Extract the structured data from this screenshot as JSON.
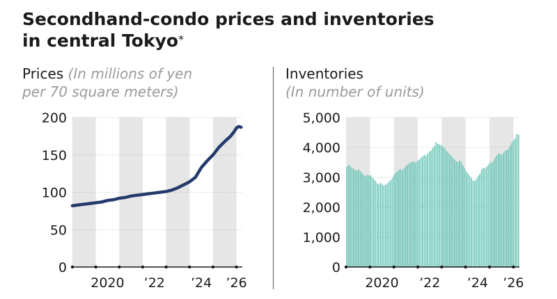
{
  "title": {
    "line1": "Secondhand-condo prices and inventories",
    "line2": "in central Tokyo",
    "footnote_mark": "*"
  },
  "colors": {
    "band": "#e6e6e6",
    "grid": "#bdbdbd",
    "price_line": "#233a6b",
    "inventory_bar": "#6cc7b8",
    "axis": "#1a1a1a"
  },
  "chart_data": [
    {
      "type": "line",
      "title_main": "Prices",
      "title_sub_line1": "(In millions of yen",
      "title_sub_line2": "per 70 square meters)",
      "x_tick_labels": [
        "2020",
        "’22",
        "’24",
        "’26"
      ],
      "x_tick_positions": [
        2020.5,
        2022.5,
        2024.5,
        2026.0
      ],
      "xlim": [
        2019.0,
        2026.25
      ],
      "ylim": [
        0,
        200
      ],
      "y_ticks": [
        0,
        50,
        100,
        150,
        200
      ],
      "y_tick_labels": [
        "0",
        "50",
        "100",
        "150",
        "200"
      ],
      "shaded_years": [
        [
          2019,
          2020
        ],
        [
          2021,
          2022
        ],
        [
          2023,
          2024
        ],
        [
          2025,
          2026
        ]
      ],
      "grid": true,
      "series": [
        {
          "x": [
            2019.0,
            2019.25,
            2019.5,
            2019.75,
            2020.0,
            2020.25,
            2020.5,
            2020.75,
            2021.0,
            2021.25,
            2021.5,
            2021.75,
            2022.0,
            2022.25,
            2022.5,
            2022.75,
            2023.0,
            2023.25,
            2023.5,
            2023.75,
            2024.0,
            2024.25,
            2024.5,
            2024.75,
            2025.0,
            2025.25,
            2025.5,
            2025.75,
            2025.9,
            2026.0,
            2026.1,
            2026.2
          ],
          "y": [
            82,
            83,
            84,
            85,
            86,
            87,
            89,
            90,
            92,
            93,
            95,
            96,
            97,
            98,
            99,
            100,
            101,
            103,
            106,
            110,
            114,
            120,
            133,
            142,
            150,
            160,
            168,
            175,
            181,
            186,
            188,
            187
          ]
        }
      ]
    },
    {
      "type": "bar",
      "title_main": "Inventories",
      "title_sub_line1": "(In number of units)",
      "x_tick_labels": [
        "2020",
        "’22",
        "’24",
        "’26"
      ],
      "x_tick_positions": [
        2020.5,
        2022.5,
        2024.5,
        2026.0
      ],
      "xlim": [
        2019.0,
        2026.25
      ],
      "ylim": [
        0,
        5000
      ],
      "y_ticks": [
        0,
        1000,
        2000,
        3000,
        4000,
        5000
      ],
      "y_tick_labels": [
        "0",
        "1,000",
        "2,000",
        "3,000",
        "4,000",
        "5,000"
      ],
      "shaded_years": [
        [
          2019,
          2020
        ],
        [
          2021,
          2022
        ],
        [
          2023,
          2024
        ],
        [
          2025,
          2026
        ]
      ],
      "grid": true,
      "series": [
        {
          "values": [
            3350,
            3430,
            3380,
            3320,
            3280,
            3250,
            3220,
            3260,
            3200,
            3150,
            3070,
            3040,
            3080,
            3060,
            3070,
            3000,
            2950,
            2880,
            2800,
            2770,
            2820,
            2760,
            2730,
            2750,
            2800,
            2850,
            2900,
            2980,
            3080,
            3150,
            3200,
            3250,
            3280,
            3230,
            3310,
            3380,
            3420,
            3480,
            3500,
            3530,
            3520,
            3490,
            3550,
            3600,
            3650,
            3700,
            3760,
            3720,
            3800,
            3860,
            3900,
            3980,
            4050,
            4180,
            4120,
            4100,
            4080,
            4020,
            3980,
            3900,
            3850,
            3780,
            3720,
            3650,
            3600,
            3530,
            3500,
            3560,
            3510,
            3400,
            3300,
            3200,
            3120,
            3050,
            2980,
            2900,
            2880,
            2950,
            3050,
            3120,
            3250,
            3320,
            3300,
            3350,
            3430,
            3500,
            3480,
            3550,
            3650,
            3720,
            3800,
            3780,
            3750,
            3820,
            3880,
            3920,
            3950,
            4050,
            4150,
            4250,
            4300,
            4450,
            4420
          ]
        }
      ]
    }
  ]
}
